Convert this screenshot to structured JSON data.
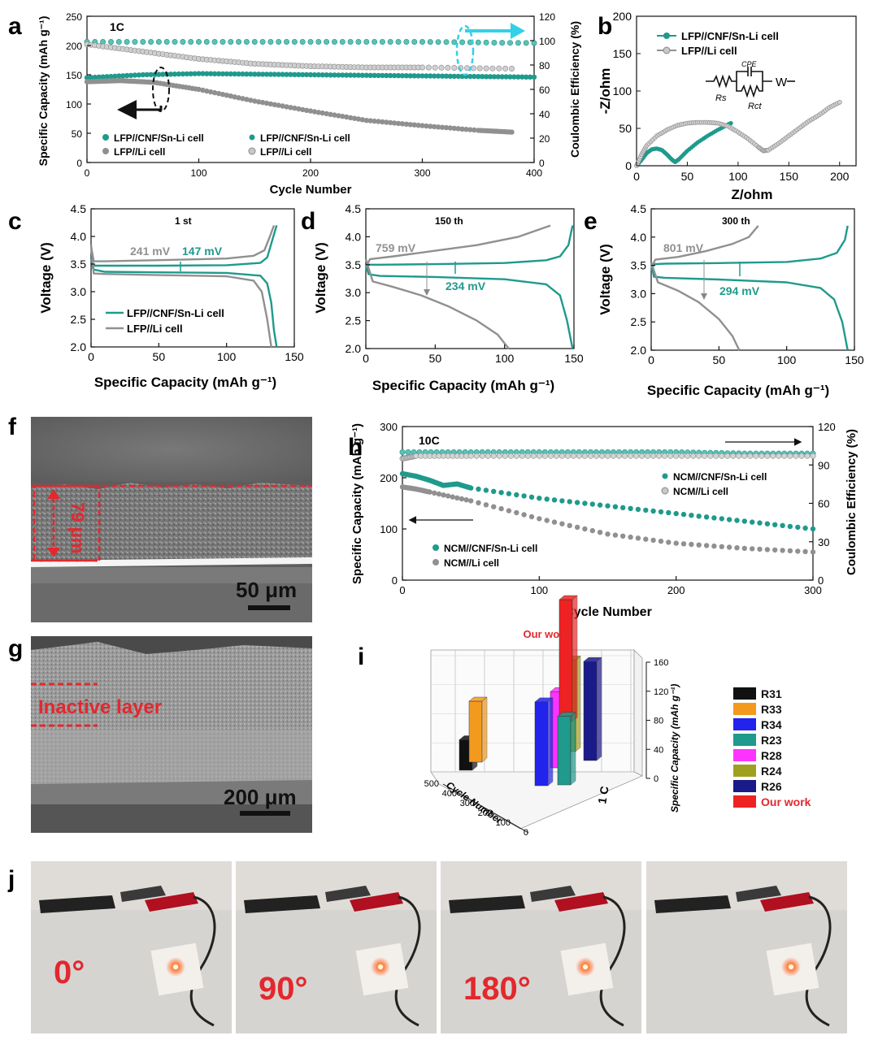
{
  "panel_labels": {
    "a": "a",
    "b": "b",
    "c": "c",
    "d": "d",
    "e": "e",
    "f": "f",
    "g": "g",
    "h": "h",
    "i": "i",
    "j": "j"
  },
  "colors": {
    "teal": "#1f9a8c",
    "gray": "#909090",
    "cyan": "#33d0e8",
    "red": "#e2282e",
    "black": "#111111"
  },
  "chart_data": [
    {
      "id": "a",
      "type": "scatter",
      "xlabel": "Cycle Number",
      "ylabel": "Specific Capacity (mAh g⁻¹)",
      "y2label": "Coulombic Efficiency (%)",
      "xlim": [
        0,
        400
      ],
      "ylim": [
        0,
        250
      ],
      "y2lim": [
        0,
        120
      ],
      "xticks": [
        "0",
        "100",
        "200",
        "300",
        "400"
      ],
      "yticks": [
        "0",
        "50",
        "100",
        "150",
        "200",
        "250"
      ],
      "y2ticks": [
        "0",
        "20",
        "40",
        "60",
        "80",
        "100",
        "120"
      ],
      "annotation": "1C",
      "legend": [
        "LFP//CNF/Sn-Li cell",
        "LFP//CNF/Sn-Li cell",
        "LFP//Li cell",
        "LFP//Li cell"
      ],
      "series": [
        {
          "name": "LFP//CNF/Sn-Li cell",
          "axis": "left",
          "x": [
            0,
            50,
            100,
            150,
            200,
            250,
            300,
            350,
            400
          ],
          "values": [
            145,
            150,
            152,
            151,
            150,
            149,
            148,
            147,
            146
          ]
        },
        {
          "name": "LFP//Li cell",
          "axis": "left",
          "x": [
            0,
            30,
            60,
            100,
            150,
            200,
            250,
            300,
            350,
            380
          ],
          "values": [
            138,
            140,
            137,
            125,
            105,
            88,
            72,
            63,
            55,
            52
          ]
        },
        {
          "name": "LFP//CNF/Sn-Li cell",
          "axis": "right",
          "x": [
            0,
            100,
            200,
            300,
            400
          ],
          "values": [
            99,
            99,
            99,
            99,
            98
          ]
        },
        {
          "name": "LFP//Li cell",
          "axis": "right",
          "x": [
            0,
            50,
            100,
            150,
            200,
            250,
            300,
            380
          ],
          "values": [
            97,
            91,
            85,
            81,
            79,
            78,
            78,
            77
          ]
        }
      ]
    },
    {
      "id": "b",
      "type": "scatter",
      "xlabel": "Z/ohm",
      "ylabel": "-Z/ohm",
      "xlim": [
        0,
        200
      ],
      "ylim": [
        0,
        200
      ],
      "xticks": [
        "0",
        "50",
        "100",
        "150",
        "200"
      ],
      "yticks": [
        "0",
        "50",
        "100",
        "150",
        "200"
      ],
      "legend": [
        "LFP//CNF/Sn-Li cell",
        "LFP//Li cell"
      ],
      "circuit_labels": {
        "rs": "Rs",
        "cpe": "CPE",
        "rct": "Rct",
        "w": "W"
      },
      "series": [
        {
          "name": "LFP//CNF/Sn-Li cell",
          "x": [
            0,
            5,
            10,
            15,
            20,
            25,
            30,
            35,
            38,
            42,
            50,
            60,
            70,
            80,
            90,
            93
          ],
          "values": [
            0,
            8,
            17,
            22,
            23,
            21,
            15,
            8,
            5,
            9,
            20,
            31,
            40,
            48,
            55,
            57
          ]
        },
        {
          "name": "LFP//Li cell",
          "x": [
            0,
            5,
            10,
            20,
            30,
            40,
            50,
            60,
            70,
            80,
            90,
            100,
            110,
            120,
            125,
            130,
            140,
            150,
            160,
            170,
            180,
            190,
            200
          ],
          "values": [
            0,
            15,
            27,
            40,
            48,
            54,
            57,
            58,
            58,
            57,
            53,
            45,
            36,
            25,
            20,
            21,
            30,
            40,
            50,
            60,
            68,
            78,
            85
          ]
        }
      ]
    },
    {
      "id": "c",
      "type": "line",
      "xlabel": "Specific Capacity (mAh g⁻¹)",
      "ylabel": "Voltage (V)",
      "xlim": [
        0,
        150
      ],
      "ylim": [
        2.0,
        4.5
      ],
      "xticks": [
        "0",
        "50",
        "100",
        "150"
      ],
      "yticks": [
        "2.0",
        "2.5",
        "3.0",
        "3.5",
        "4.0",
        "4.5"
      ],
      "annotation": "1 st",
      "gap_labels": [
        "241 mV",
        "147 mV"
      ],
      "legend": [
        "LFP//CNF/Sn-Li cell",
        "LFP//Li cell"
      ],
      "series": [
        {
          "name": "LFP//CNF/Sn-Li cell",
          "x": [
            0,
            2,
            10,
            50,
            100,
            125,
            130,
            134,
            137
          ],
          "values": [
            3.42,
            3.47,
            3.47,
            3.47,
            3.48,
            3.52,
            3.62,
            3.95,
            4.2
          ],
          "x2": [
            0,
            2,
            10,
            50,
            100,
            125,
            130,
            133,
            135,
            137
          ],
          "values2": [
            3.6,
            3.4,
            3.36,
            3.35,
            3.34,
            3.29,
            3.15,
            2.8,
            2.3,
            2.0
          ]
        },
        {
          "name": "LFP//Li cell",
          "x": [
            0,
            2,
            10,
            50,
            100,
            120,
            128,
            132,
            135
          ],
          "values": [
            3.82,
            3.55,
            3.55,
            3.57,
            3.6,
            3.65,
            3.75,
            4.0,
            4.2
          ],
          "x2": [
            0,
            2,
            10,
            50,
            100,
            120,
            126,
            130,
            133
          ],
          "values2": [
            3.85,
            3.33,
            3.32,
            3.3,
            3.28,
            3.2,
            3.0,
            2.5,
            2.0
          ]
        }
      ]
    },
    {
      "id": "d",
      "type": "line",
      "xlabel": "Specific Capacity (mAh g⁻¹)",
      "ylabel": "Voltage (V)",
      "xlim": [
        0,
        150
      ],
      "ylim": [
        2.0,
        4.5
      ],
      "xticks": [
        "0",
        "50",
        "100",
        "150"
      ],
      "yticks": [
        "2.0",
        "2.5",
        "3.0",
        "3.5",
        "4.0",
        "4.5"
      ],
      "annotation": "150 th",
      "gap_labels": [
        "759 mV",
        "234 mV"
      ],
      "series": [
        {
          "name": "LFP//CNF/Sn-Li cell",
          "x": [
            0,
            2,
            10,
            50,
            100,
            130,
            140,
            146,
            149
          ],
          "values": [
            3.4,
            3.5,
            3.5,
            3.51,
            3.53,
            3.58,
            3.65,
            3.85,
            4.2
          ],
          "x2": [
            0,
            2,
            10,
            50,
            100,
            130,
            140,
            145,
            149
          ],
          "values2": [
            3.5,
            3.33,
            3.3,
            3.28,
            3.24,
            3.15,
            2.95,
            2.5,
            2.0
          ]
        },
        {
          "name": "LFP//Li cell",
          "x": [
            0,
            3,
            20,
            50,
            80,
            110,
            133
          ],
          "values": [
            3.45,
            3.6,
            3.65,
            3.75,
            3.85,
            4.0,
            4.2
          ],
          "x2": [
            0,
            5,
            20,
            40,
            60,
            80,
            95,
            103
          ],
          "values2": [
            3.6,
            3.2,
            3.1,
            2.95,
            2.75,
            2.5,
            2.25,
            2.0
          ]
        }
      ]
    },
    {
      "id": "e",
      "type": "line",
      "xlabel": "Specific Capacity (mAh g⁻¹)",
      "ylabel": "Voltage (V)",
      "xlim": [
        0,
        150
      ],
      "ylim": [
        2.0,
        4.5
      ],
      "xticks": [
        "0",
        "50",
        "100",
        "150"
      ],
      "yticks": [
        "2.0",
        "2.5",
        "3.0",
        "3.5",
        "4.0",
        "4.5"
      ],
      "annotation": "300 th",
      "gap_labels": [
        "801 mV",
        "294 mV"
      ],
      "series": [
        {
          "name": "LFP//CNF/Sn-Li cell",
          "x": [
            0,
            2,
            10,
            50,
            100,
            125,
            137,
            143,
            145
          ],
          "values": [
            3.4,
            3.52,
            3.53,
            3.54,
            3.56,
            3.62,
            3.72,
            3.95,
            4.2
          ],
          "x2": [
            0,
            2,
            10,
            50,
            100,
            125,
            135,
            141,
            145
          ],
          "values2": [
            3.55,
            3.3,
            3.28,
            3.25,
            3.2,
            3.1,
            2.9,
            2.5,
            2.0
          ]
        },
        {
          "name": "LFP//Li cell",
          "x": [
            0,
            3,
            20,
            40,
            60,
            72,
            79
          ],
          "values": [
            3.45,
            3.6,
            3.65,
            3.75,
            3.88,
            4.0,
            4.2
          ],
          "x2": [
            0,
            5,
            20,
            35,
            50,
            60,
            65
          ],
          "values2": [
            3.55,
            3.2,
            3.05,
            2.85,
            2.55,
            2.25,
            2.0
          ]
        }
      ]
    },
    {
      "id": "h",
      "type": "scatter",
      "xlabel": "Cycle Number",
      "ylabel": "Specific Capacity (mAh g⁻¹)",
      "y2label": "Coulombic Efficiency (%)",
      "xlim": [
        0,
        300
      ],
      "ylim": [
        0,
        300
      ],
      "y2lim": [
        0,
        120
      ],
      "xticks": [
        "0",
        "100",
        "200",
        "300"
      ],
      "yticks": [
        "0",
        "100",
        "200",
        "300"
      ],
      "y2ticks": [
        "0",
        "30",
        "60",
        "90",
        "120"
      ],
      "annotation": "10C",
      "legend_right": [
        "NCM//CNF/Sn-Li cell",
        "NCM//Li cell"
      ],
      "legend_left": [
        "NCM//CNF/Sn-Li cell",
        "NCM//Li cell"
      ],
      "series": [
        {
          "name": "NCM//CNF/Sn-Li cell",
          "axis": "left",
          "x": [
            0,
            10,
            20,
            30,
            40,
            50,
            100,
            150,
            200,
            250,
            300
          ],
          "values": [
            208,
            203,
            195,
            185,
            188,
            180,
            160,
            145,
            130,
            115,
            100
          ],
          "x2": [
            0,
            50,
            100,
            150,
            200,
            250,
            300
          ],
          "values2": [
            100,
            100,
            100,
            100,
            100,
            99,
            99
          ]
        },
        {
          "name": "NCM//Li cell",
          "axis": "left",
          "x": [
            0,
            10,
            20,
            50,
            100,
            150,
            200,
            250,
            300
          ],
          "values": [
            182,
            178,
            172,
            155,
            120,
            90,
            72,
            62,
            55
          ],
          "x2": [
            0,
            10,
            50,
            100,
            150,
            200,
            250,
            300
          ],
          "values2": [
            95,
            97,
            97,
            97,
            97,
            97,
            97,
            97
          ]
        }
      ]
    },
    {
      "id": "i",
      "type": "bar",
      "title": "Our work",
      "xlabel": "Cycle Number",
      "zlabel": "Specific Capacity (mAh g⁻¹)",
      "side_label": "1 C",
      "zticks": [
        "0",
        "40",
        "80",
        "120",
        "160"
      ],
      "cycle_ticks": [
        "500",
        "400",
        "300",
        "200",
        "100",
        "0"
      ],
      "categories": [
        "R31",
        "R33",
        "R34",
        "R23",
        "R28",
        "R24",
        "R26",
        "Our work"
      ],
      "colors": [
        "#111111",
        "#f39a1e",
        "#2323ee",
        "#1f9a8c",
        "#ff33ff",
        "#a0a020",
        "#1a1a8a",
        "#ee2222"
      ],
      "values": [
        40,
        80,
        110,
        90,
        100,
        120,
        130,
        160
      ],
      "cycles": [
        450,
        400,
        300,
        300,
        300,
        300,
        300,
        300
      ]
    }
  ],
  "images": {
    "f": {
      "thickness": "79 μm",
      "scalebar": "50 μm"
    },
    "g": {
      "label": "Inactive layer",
      "scalebar": "200 μm"
    },
    "j": {
      "angles": [
        "0°",
        "90°",
        "180°"
      ]
    }
  }
}
